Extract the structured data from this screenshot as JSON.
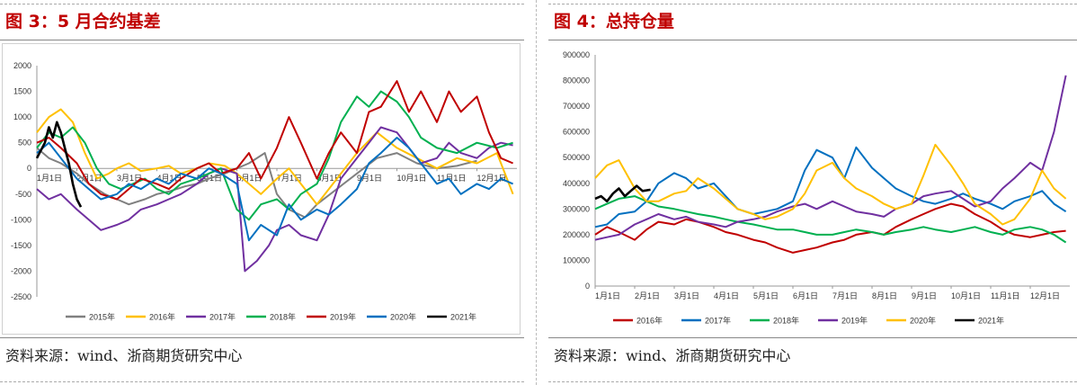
{
  "left": {
    "title": "图 3：5 月合约基差",
    "source": "资料来源：wind、浙商期货研究中心"
  },
  "right": {
    "title": "图 4：总持仓量",
    "source": "资料来源：wind、浙商期货研究中心"
  },
  "chart_data": [
    {
      "type": "line",
      "title": "",
      "xlabel": "",
      "ylabel": "",
      "ylim": [
        -2500,
        2000
      ],
      "yticks": [
        2000,
        1500,
        1000,
        500,
        0,
        -500,
        -1000,
        -1500,
        -2000,
        -2500
      ],
      "xticks": [
        "1月1日",
        "2月1日",
        "3月1日",
        "4月1日",
        "5月1日",
        "6月1日",
        "7月1日",
        "8月1日",
        "9月1日",
        "10月1日",
        "11月1日",
        "12月1日"
      ],
      "x_axis_position": "at y=0",
      "grid": false,
      "legend_position": "bottom",
      "series": [
        {
          "name": "2015年",
          "color": "#808080",
          "x": [
            0,
            0.3,
            0.6,
            1,
            1.3,
            1.7,
            2,
            2.3,
            2.7,
            3,
            3.3,
            3.7,
            4,
            4.3,
            4.7,
            5,
            5.3,
            5.7,
            6,
            6.3,
            6.7,
            7,
            7.5,
            8,
            8.5,
            9,
            9.5,
            10,
            10.5,
            11
          ],
          "values": [
            400,
            200,
            100,
            -100,
            -300,
            -500,
            -600,
            -700,
            -600,
            -500,
            -450,
            -350,
            -300,
            -200,
            -100,
            0,
            100,
            300,
            -500,
            -800,
            -950,
            -700,
            -400,
            -100,
            200,
            300,
            100,
            0,
            50,
            150
          ]
        },
        {
          "name": "2016年",
          "color": "#ffc000",
          "x": [
            0,
            0.3,
            0.6,
            0.9,
            1.2,
            1.5,
            1.8,
            2,
            2.3,
            2.6,
            3,
            3.3,
            3.6,
            4,
            4.3,
            4.7,
            5,
            5.3,
            5.6,
            6,
            6.3,
            6.6,
            7,
            7.5,
            8,
            8.5,
            9,
            9.5,
            10,
            10.5,
            11,
            11.5,
            11.9
          ],
          "values": [
            700,
            1000,
            1150,
            900,
            300,
            -200,
            -100,
            0,
            100,
            -50,
            0,
            50,
            -100,
            0,
            100,
            50,
            -100,
            -300,
            -500,
            -200,
            0,
            -300,
            -700,
            -200,
            300,
            700,
            400,
            200,
            0,
            200,
            100,
            300,
            -500
          ]
        },
        {
          "name": "2017年",
          "color": "#7030a0",
          "x": [
            0,
            0.3,
            0.6,
            1,
            1.3,
            1.6,
            2,
            2.3,
            2.6,
            3,
            3.3,
            3.6,
            4,
            4.3,
            4.6,
            5,
            5.2,
            5.5,
            5.8,
            6,
            6.3,
            6.6,
            7,
            7.3,
            7.6,
            8,
            8.3,
            8.6,
            9,
            9.3,
            9.6,
            10,
            10.3,
            10.6,
            11,
            11.3,
            11.6,
            11.9
          ],
          "values": [
            -400,
            -600,
            -500,
            -800,
            -1000,
            -1200,
            -1100,
            -1000,
            -800,
            -700,
            -600,
            -500,
            -300,
            -100,
            0,
            -100,
            -2000,
            -1800,
            -1500,
            -1200,
            -1100,
            -1300,
            -1400,
            -900,
            -200,
            200,
            500,
            800,
            700,
            400,
            100,
            200,
            500,
            300,
            200,
            400,
            500,
            450
          ]
        },
        {
          "name": "2018年",
          "color": "#00b050",
          "x": [
            0,
            0.3,
            0.6,
            0.9,
            1.2,
            1.5,
            1.8,
            2.1,
            2.4,
            2.7,
            3,
            3.3,
            3.6,
            4,
            4.3,
            4.6,
            5,
            5.3,
            5.6,
            6,
            6.3,
            6.6,
            7,
            7.3,
            7.6,
            8,
            8.3,
            8.6,
            9,
            9.3,
            9.6,
            10,
            10.5,
            11,
            11.5,
            11.9
          ],
          "values": [
            400,
            700,
            600,
            800,
            500,
            0,
            -300,
            -400,
            -300,
            -200,
            -400,
            -500,
            -300,
            -200,
            -100,
            0,
            -800,
            -1000,
            -700,
            -600,
            -800,
            -500,
            -300,
            200,
            900,
            1400,
            1200,
            1500,
            1300,
            1000,
            600,
            400,
            300,
            500,
            400,
            500
          ]
        },
        {
          "name": "2019年",
          "color": "#c00000",
          "x": [
            0,
            0.3,
            0.6,
            1,
            1.3,
            1.6,
            2,
            2.3,
            2.6,
            3,
            3.3,
            3.6,
            4,
            4.3,
            4.6,
            5,
            5.3,
            5.6,
            6,
            6.3,
            6.6,
            7,
            7.3,
            7.6,
            8,
            8.3,
            8.6,
            9,
            9.3,
            9.6,
            10,
            10.3,
            10.6,
            11,
            11.3,
            11.6,
            11.9
          ],
          "values": [
            500,
            600,
            400,
            100,
            -300,
            -500,
            -600,
            -400,
            -200,
            -300,
            -400,
            -200,
            0,
            100,
            -100,
            0,
            300,
            -200,
            400,
            1000,
            500,
            -200,
            300,
            700,
            300,
            1100,
            1200,
            1700,
            1100,
            1500,
            900,
            1500,
            1100,
            1400,
            700,
            200,
            100
          ]
        },
        {
          "name": "2020年",
          "color": "#0070c0",
          "x": [
            0,
            0.3,
            0.6,
            1,
            1.3,
            1.6,
            2,
            2.3,
            2.6,
            3,
            3.3,
            3.6,
            4,
            4.3,
            4.6,
            5,
            5.3,
            5.6,
            6,
            6.3,
            6.6,
            7,
            7.3,
            7.6,
            8,
            8.3,
            8.6,
            9,
            9.3,
            9.6,
            10,
            10.3,
            10.6,
            11,
            11.3,
            11.6,
            11.9
          ],
          "values": [
            300,
            500,
            200,
            -200,
            -400,
            -600,
            -500,
            -300,
            -400,
            -200,
            -300,
            -100,
            -200,
            0,
            -100,
            -300,
            -1400,
            -1100,
            -1300,
            -700,
            -1000,
            -800,
            -900,
            -700,
            -400,
            100,
            300,
            600,
            400,
            100,
            -300,
            -200,
            -500,
            -300,
            -400,
            -200,
            -300
          ]
        },
        {
          "name": "2021年",
          "color": "#000000",
          "x": [
            0,
            0.1,
            0.2,
            0.3,
            0.4,
            0.5,
            0.6,
            0.7,
            0.8,
            0.9,
            1.0,
            1.1
          ],
          "values": [
            200,
            350,
            500,
            800,
            600,
            900,
            700,
            400,
            100,
            -300,
            -600,
            -750
          ]
        }
      ]
    },
    {
      "type": "line",
      "title": "",
      "xlabel": "",
      "ylabel": "",
      "ylim": [
        0,
        900000
      ],
      "yticks": [
        900000,
        800000,
        700000,
        600000,
        500000,
        400000,
        300000,
        200000,
        100000,
        0
      ],
      "xticks": [
        "1月1日",
        "2月1日",
        "3月1日",
        "4月1日",
        "5月1日",
        "6月1日",
        "7月1日",
        "8月1日",
        "9月1日",
        "10月1日",
        "11月1日",
        "12月1日"
      ],
      "grid": false,
      "legend_position": "bottom",
      "series": [
        {
          "name": "2016年",
          "color": "#c00000",
          "x": [
            0,
            0.3,
            0.6,
            1,
            1.3,
            1.6,
            2,
            2.3,
            2.6,
            3,
            3.3,
            3.6,
            4,
            4.3,
            4.6,
            5,
            5.3,
            5.6,
            6,
            6.3,
            6.6,
            7,
            7.3,
            7.6,
            8,
            8.3,
            8.6,
            9,
            9.3,
            9.6,
            10,
            10.3,
            10.6,
            11,
            11.3,
            11.6,
            11.9
          ],
          "values": [
            200000,
            230000,
            210000,
            180000,
            220000,
            250000,
            240000,
            260000,
            250000,
            230000,
            210000,
            200000,
            180000,
            170000,
            150000,
            130000,
            140000,
            150000,
            170000,
            180000,
            200000,
            210000,
            200000,
            230000,
            260000,
            280000,
            300000,
            320000,
            310000,
            280000,
            250000,
            220000,
            200000,
            190000,
            200000,
            210000,
            215000
          ]
        },
        {
          "name": "2017年",
          "color": "#0070c0",
          "x": [
            0,
            0.3,
            0.6,
            1,
            1.3,
            1.6,
            2,
            2.3,
            2.6,
            3,
            3.3,
            3.6,
            4,
            4.3,
            4.6,
            5,
            5.3,
            5.6,
            6,
            6.3,
            6.6,
            7,
            7.3,
            7.6,
            8,
            8.3,
            8.6,
            9,
            9.3,
            9.6,
            10,
            10.3,
            10.6,
            11,
            11.3,
            11.6,
            11.9
          ],
          "values": [
            230000,
            240000,
            280000,
            290000,
            330000,
            400000,
            440000,
            420000,
            380000,
            400000,
            350000,
            300000,
            280000,
            290000,
            300000,
            330000,
            450000,
            530000,
            500000,
            420000,
            540000,
            460000,
            420000,
            380000,
            350000,
            330000,
            320000,
            340000,
            360000,
            340000,
            320000,
            300000,
            330000,
            350000,
            370000,
            320000,
            290000
          ]
        },
        {
          "name": "2018年",
          "color": "#00b050",
          "x": [
            0,
            0.3,
            0.6,
            1,
            1.3,
            1.6,
            2,
            2.3,
            2.6,
            3,
            3.3,
            3.6,
            4,
            4.3,
            4.6,
            5,
            5.3,
            5.6,
            6,
            6.3,
            6.6,
            7,
            7.3,
            7.6,
            8,
            8.3,
            8.6,
            9,
            9.3,
            9.6,
            10,
            10.3,
            10.6,
            11,
            11.3,
            11.6,
            11.9
          ],
          "values": [
            300000,
            320000,
            340000,
            350000,
            330000,
            310000,
            300000,
            290000,
            280000,
            270000,
            260000,
            250000,
            240000,
            230000,
            220000,
            220000,
            210000,
            200000,
            200000,
            210000,
            220000,
            210000,
            200000,
            210000,
            220000,
            230000,
            220000,
            210000,
            220000,
            230000,
            210000,
            200000,
            220000,
            230000,
            220000,
            200000,
            170000
          ]
        },
        {
          "name": "2019年",
          "color": "#7030a0",
          "x": [
            0,
            0.3,
            0.6,
            1,
            1.3,
            1.6,
            2,
            2.3,
            2.6,
            3,
            3.3,
            3.6,
            4,
            4.3,
            4.6,
            5,
            5.3,
            5.6,
            6,
            6.3,
            6.6,
            7,
            7.3,
            7.6,
            8,
            8.3,
            8.6,
            9,
            9.3,
            9.6,
            10,
            10.3,
            10.6,
            11,
            11.3,
            11.6,
            11.9
          ],
          "values": [
            180000,
            190000,
            200000,
            240000,
            260000,
            280000,
            260000,
            270000,
            250000,
            240000,
            230000,
            250000,
            260000,
            270000,
            290000,
            310000,
            320000,
            300000,
            330000,
            310000,
            290000,
            280000,
            270000,
            300000,
            320000,
            350000,
            360000,
            370000,
            340000,
            310000,
            330000,
            380000,
            420000,
            480000,
            450000,
            600000,
            820000
          ]
        },
        {
          "name": "2020年",
          "color": "#ffc000",
          "x": [
            0,
            0.3,
            0.6,
            1,
            1.3,
            1.6,
            2,
            2.3,
            2.6,
            3,
            3.3,
            3.6,
            4,
            4.3,
            4.6,
            5,
            5.3,
            5.6,
            6,
            6.3,
            6.6,
            7,
            7.3,
            7.6,
            8,
            8.3,
            8.6,
            9,
            9.3,
            9.6,
            10,
            10.3,
            10.6,
            11,
            11.3,
            11.6,
            11.9
          ],
          "values": [
            420000,
            470000,
            490000,
            380000,
            330000,
            330000,
            360000,
            370000,
            420000,
            380000,
            340000,
            300000,
            280000,
            260000,
            270000,
            300000,
            360000,
            450000,
            480000,
            420000,
            380000,
            350000,
            320000,
            300000,
            320000,
            430000,
            550000,
            470000,
            400000,
            320000,
            280000,
            240000,
            260000,
            340000,
            450000,
            380000,
            340000
          ]
        },
        {
          "name": "2021年",
          "color": "#000000",
          "x": [
            0,
            0.15,
            0.3,
            0.45,
            0.6,
            0.75,
            0.9,
            1.05,
            1.2,
            1.4
          ],
          "values": [
            340000,
            350000,
            330000,
            360000,
            380000,
            350000,
            370000,
            390000,
            370000,
            375000
          ]
        }
      ]
    }
  ]
}
